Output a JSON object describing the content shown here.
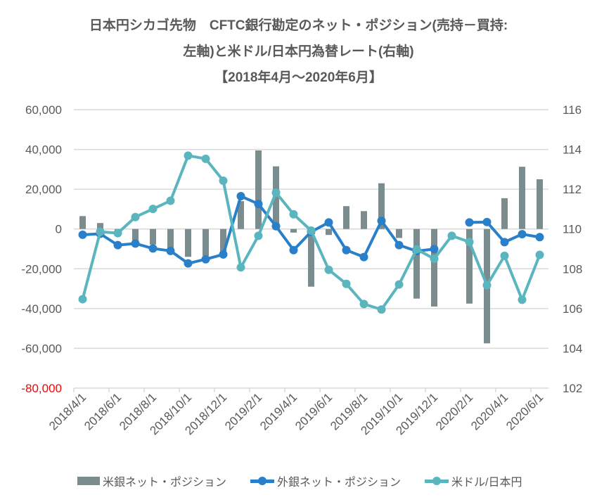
{
  "chart_data": {
    "type": "bar+line",
    "title_lines": [
      "日本円シカゴ先物　CFTC銀行勘定のネット・ポジション(売持－買持:",
      "左軸)と米ドル/日本円為替レート(右軸)",
      "【2018年4月～2020年6月】"
    ],
    "categories": [
      "2018/4/1",
      "2018/5/1",
      "2018/6/1",
      "2018/7/1",
      "2018/8/1",
      "2018/9/1",
      "2018/10/1",
      "2018/11/1",
      "2018/12/1",
      "2019/1/1",
      "2019/2/1",
      "2019/3/1",
      "2019/4/1",
      "2019/5/1",
      "2019/6/1",
      "2019/7/1",
      "2019/8/1",
      "2019/9/1",
      "2019/10/1",
      "2019/11/1",
      "2019/12/1",
      "2020/1/1",
      "2020/2/1",
      "2020/3/1",
      "2020/4/1",
      "2020/5/1",
      "2020/6/1"
    ],
    "x_tick_labels": [
      "2018/4/1",
      "2018/6/1",
      "2018/8/1",
      "2018/10/1",
      "2018/12/1",
      "2019/2/1",
      "2019/4/1",
      "2019/6/1",
      "2019/8/1",
      "2019/10/1",
      "2019/12/1",
      "2020/2/1",
      "2020/4/1",
      "2020/6/1"
    ],
    "series": [
      {
        "name": "米銀ネット・ポジション",
        "type": "bar",
        "axis": "left",
        "color": "#7a8c8e",
        "values": [
          6500,
          3000,
          -2000,
          -7500,
          -7800,
          -11000,
          -14000,
          -13500,
          -12000,
          14000,
          39500,
          31500,
          -1800,
          -29000,
          -3000,
          11500,
          9000,
          23000,
          -4500,
          -35000,
          -39000,
          0,
          -37500,
          -57500,
          15500,
          31300,
          25000
        ]
      },
      {
        "name": "外銀ネット・ポジション",
        "type": "line",
        "axis": "left",
        "color": "#2a7fc9",
        "values": [
          -2900,
          -2400,
          -8100,
          -7300,
          -9800,
          -11000,
          -17300,
          -15200,
          -12800,
          16500,
          12600,
          1400,
          -10600,
          -1400,
          3300,
          -10600,
          -14100,
          4100,
          -8100,
          -11100,
          -10100,
          null,
          3300,
          3500,
          -6600,
          -2600,
          -4100
        ]
      },
      {
        "name": "米ドル/日本円",
        "type": "line",
        "axis": "right",
        "color": "#5ab5bf",
        "values": [
          106.47,
          109.86,
          109.79,
          110.6,
          111.01,
          111.42,
          113.69,
          113.53,
          112.43,
          108.07,
          109.66,
          111.83,
          110.74,
          109.92,
          107.95,
          107.24,
          106.23,
          105.95,
          107.21,
          108.98,
          108.5,
          109.66,
          109.35,
          107.17,
          108.65,
          106.44,
          108.7
        ]
      }
    ],
    "left_axis": {
      "ylim": [
        -80000,
        60000
      ],
      "ticks": [
        "60,000",
        "40,000",
        "20,000",
        "0",
        "-20,000",
        "-40,000",
        "-60,000",
        "-80,000"
      ],
      "tick_values": [
        60000,
        40000,
        20000,
        0,
        -20000,
        -40000,
        -60000,
        -80000
      ]
    },
    "right_axis": {
      "ylim": [
        102,
        116
      ],
      "ticks": [
        "116",
        "114",
        "112",
        "110",
        "108",
        "106",
        "104",
        "102"
      ]
    },
    "colors": {
      "text": "#595959",
      "negative_label": "#ff0000",
      "grid": "#d9d9d9"
    },
    "grid": true,
    "legend_position": "bottom"
  }
}
